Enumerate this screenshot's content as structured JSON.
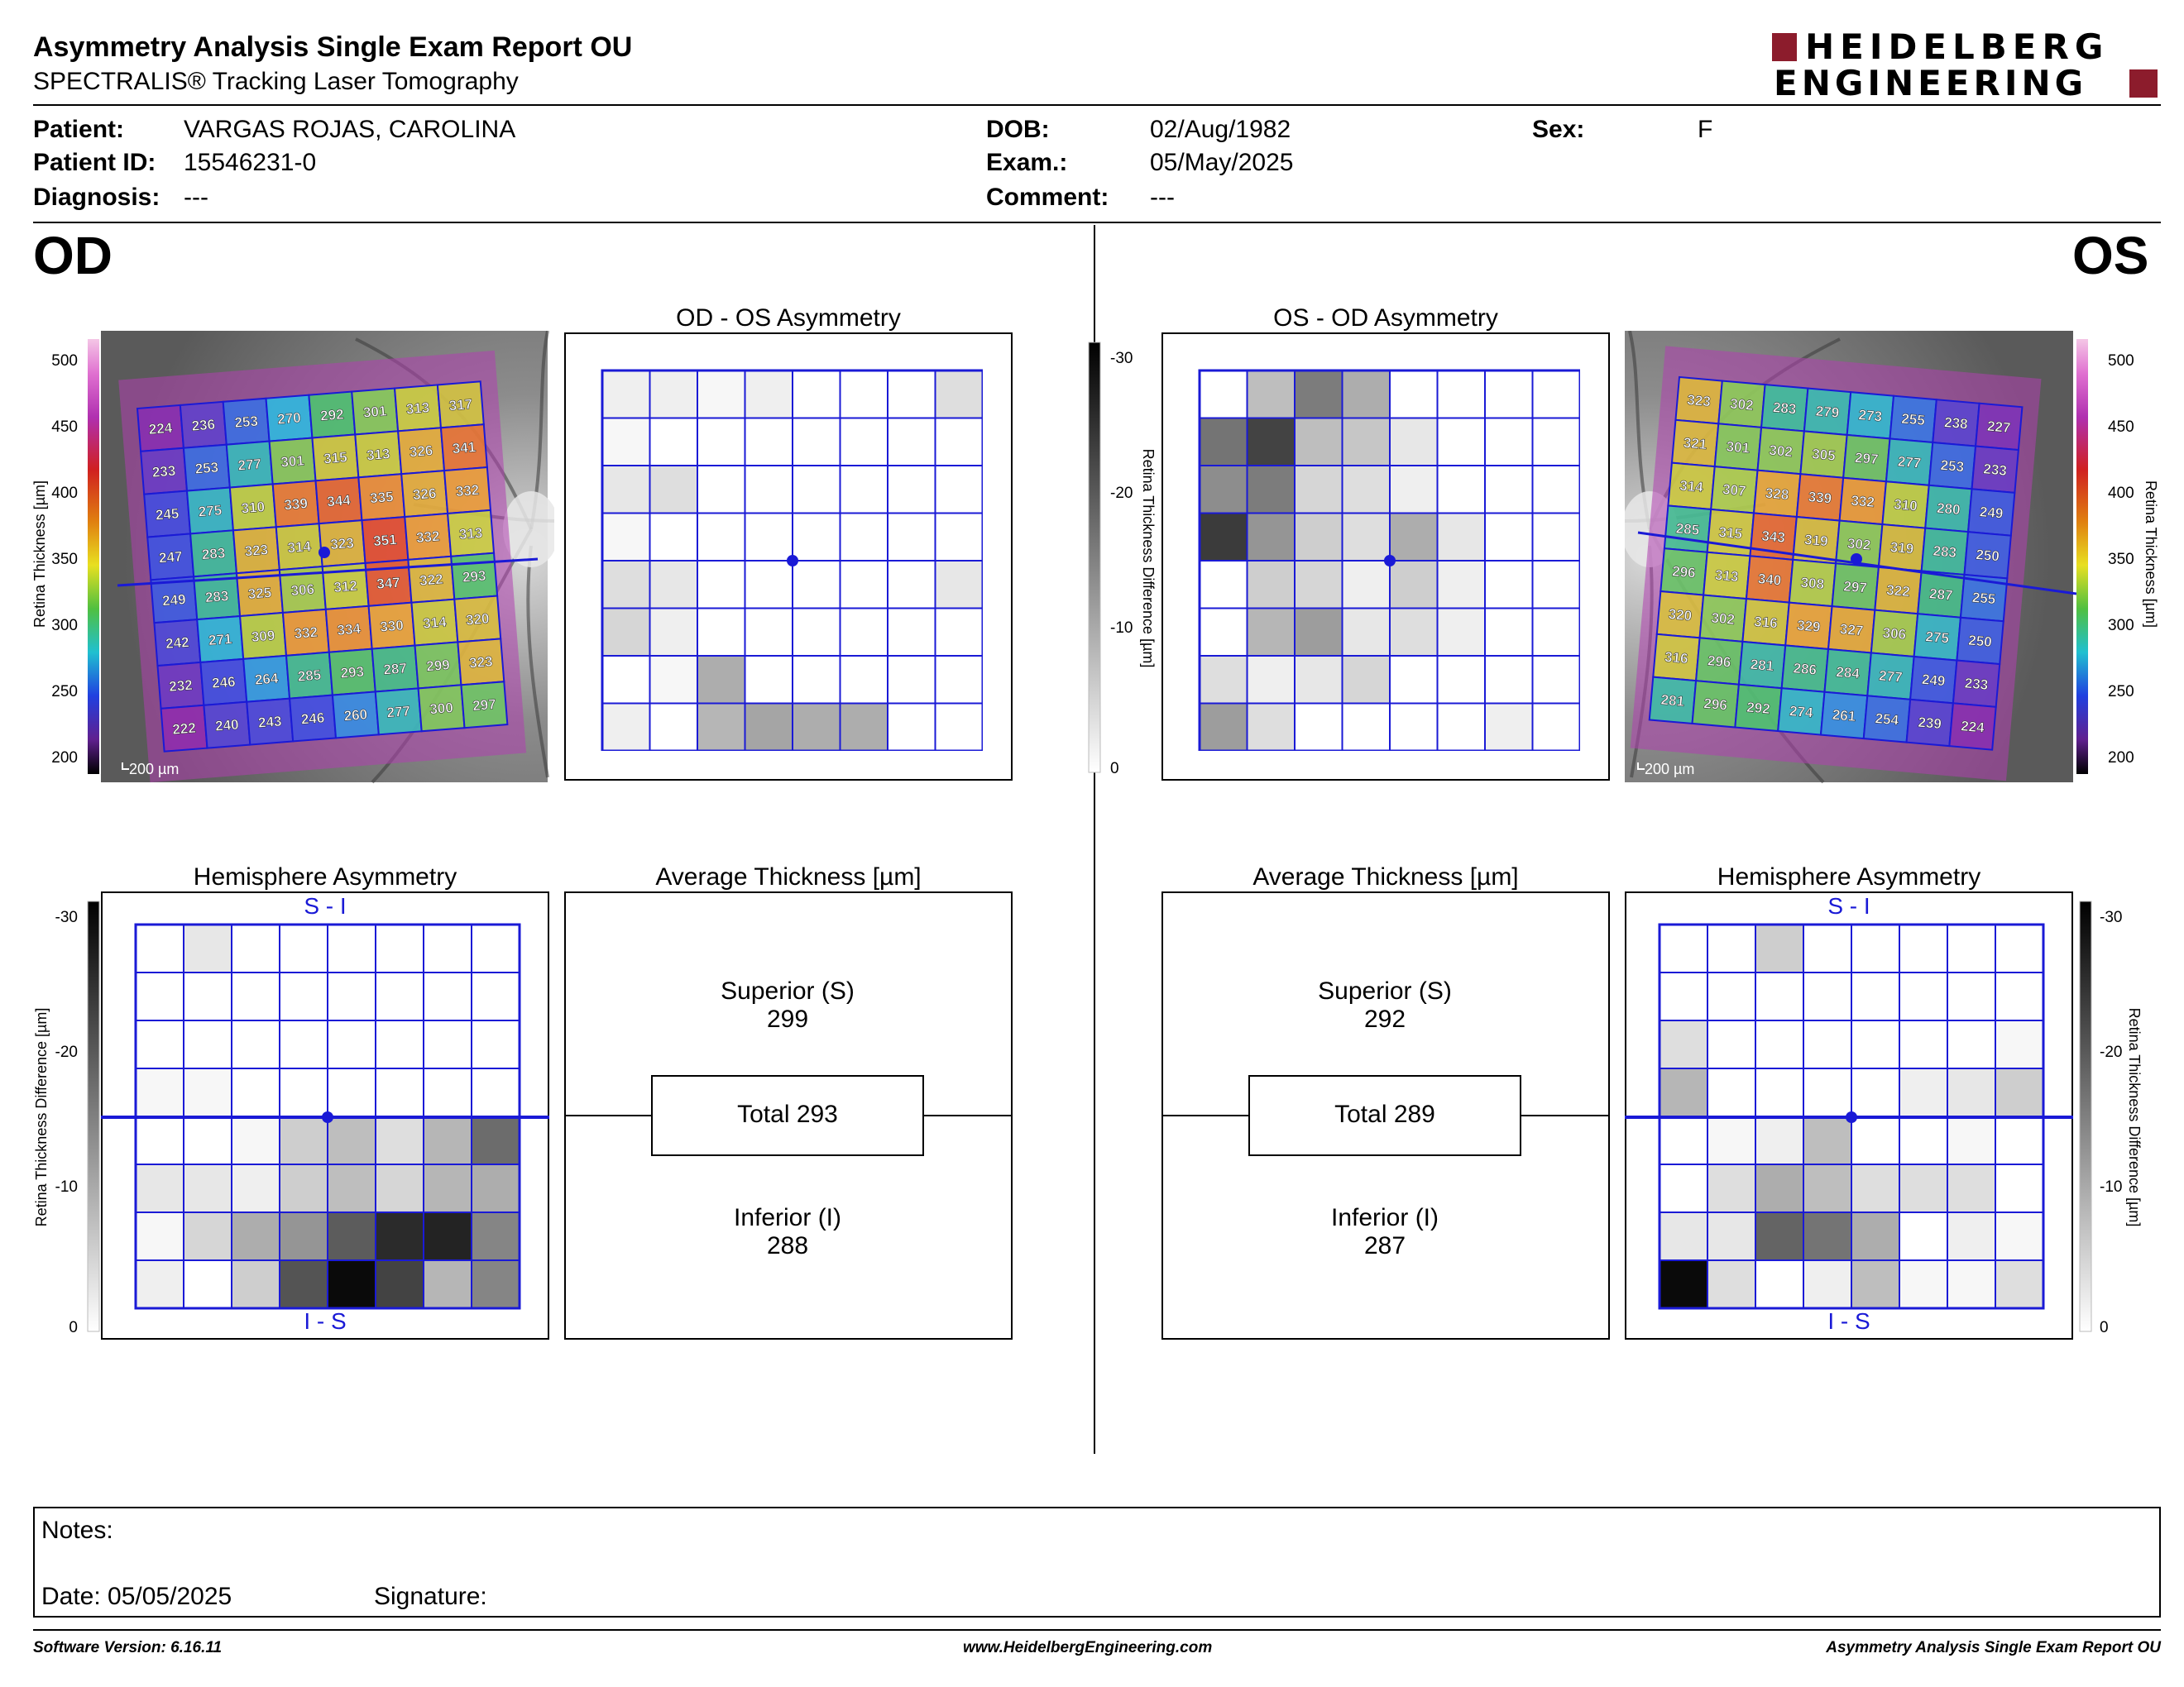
{
  "header": {
    "title": "Asymmetry Analysis Single Exam Report OU",
    "subtitle": "SPECTRALIS® Tracking Laser Tomography",
    "logo_line1": "HEIDELBERG",
    "logo_line2": "ENGINEERING"
  },
  "patient": {
    "patient_label": "Patient:",
    "patient_value": "VARGAS ROJAS, CAROLINA",
    "id_label": "Patient ID:",
    "id_value": "15546231-0",
    "diagnosis_label": "Diagnosis:",
    "diagnosis_value": "---",
    "dob_label": "DOB:",
    "dob_value": "02/Aug/1982",
    "exam_label": "Exam.:",
    "exam_value": "05/May/2025",
    "comment_label": "Comment:",
    "comment_value": "---",
    "sex_label": "Sex:",
    "sex_value": "F"
  },
  "eyes": {
    "od": "OD",
    "os": "OS"
  },
  "titles": {
    "od_os_asym": "OD - OS Asymmetry",
    "os_od_asym": "OS - OD Asymmetry",
    "hemi_left": "Hemisphere Asymmetry",
    "hemi_right": "Hemisphere Asymmetry",
    "avg_left": "Average Thickness [µm]",
    "avg_right": "Average Thickness [µm]"
  },
  "axis": {
    "thickness_label": "Retina  Thickness [µm]",
    "diff_label": "Retina Thickness Difference [µm]",
    "thickness_ticks": [
      "500",
      "450",
      "400",
      "350",
      "300",
      "250",
      "200"
    ],
    "diff_ticks": [
      "-30",
      "-20",
      "-10",
      "0"
    ],
    "scale_bar": "200 µm",
    "si": "S - I",
    "is": "I - S"
  },
  "od_thickness": [
    [
      "224",
      "236",
      "253",
      "270",
      "292",
      "301",
      "313",
      "317"
    ],
    [
      "233",
      "253",
      "277",
      "301",
      "315",
      "313",
      "326",
      "341"
    ],
    [
      "245",
      "275",
      "310",
      "339",
      "344",
      "335",
      "326",
      "332"
    ],
    [
      "247",
      "283",
      "323",
      "314",
      "323",
      "351",
      "332",
      "313"
    ],
    [
      "249",
      "283",
      "325",
      "306",
      "312",
      "347",
      "322",
      "293"
    ],
    [
      "242",
      "271",
      "309",
      "332",
      "334",
      "330",
      "314",
      "320"
    ],
    [
      "232",
      "246",
      "264",
      "285",
      "293",
      "287",
      "299",
      "323"
    ],
    [
      "222",
      "240",
      "243",
      "246",
      "260",
      "277",
      "300",
      "297"
    ]
  ],
  "os_thickness": [
    [
      "323",
      "302",
      "283",
      "279",
      "273",
      "255",
      "238",
      "227"
    ],
    [
      "321",
      "301",
      "302",
      "305",
      "297",
      "277",
      "253",
      "233"
    ],
    [
      "314",
      "307",
      "328",
      "339",
      "332",
      "310",
      "280",
      "249"
    ],
    [
      "285",
      "315",
      "343",
      "319",
      "302",
      "319",
      "283",
      "250"
    ],
    [
      "296",
      "313",
      "340",
      "308",
      "297",
      "322",
      "287",
      "255"
    ],
    [
      "320",
      "302",
      "316",
      "329",
      "327",
      "306",
      "275",
      "250"
    ],
    [
      "316",
      "296",
      "281",
      "286",
      "284",
      "277",
      "249",
      "233"
    ],
    [
      "281",
      "296",
      "292",
      "274",
      "261",
      "254",
      "239",
      "224"
    ]
  ],
  "od_os_asym_grid": [
    [
      2,
      2,
      1,
      2,
      0,
      0,
      0,
      4
    ],
    [
      1,
      0,
      0,
      0,
      0,
      0,
      0,
      0
    ],
    [
      3,
      4,
      0,
      0,
      0,
      0,
      0,
      0
    ],
    [
      1,
      0,
      0,
      0,
      0,
      0,
      0,
      0
    ],
    [
      4,
      3,
      0,
      0,
      0,
      0,
      0,
      3
    ],
    [
      5,
      2,
      0,
      0,
      0,
      0,
      0,
      0
    ],
    [
      0,
      1,
      10,
      0,
      0,
      0,
      0,
      0
    ],
    [
      2,
      0,
      9,
      11,
      10,
      10,
      0,
      0
    ]
  ],
  "os_od_asym_grid": [
    [
      0,
      8,
      16,
      10,
      0,
      0,
      0,
      0
    ],
    [
      17,
      23,
      8,
      7,
      3,
      0,
      0,
      0
    ],
    [
      14,
      16,
      5,
      4,
      2,
      0,
      0,
      0
    ],
    [
      24,
      13,
      6,
      4,
      10,
      3,
      0,
      0
    ],
    [
      0,
      6,
      5,
      2,
      6,
      2,
      0,
      0
    ],
    [
      0,
      9,
      12,
      3,
      4,
      2,
      0,
      0
    ],
    [
      4,
      2,
      3,
      5,
      0,
      0,
      0,
      0
    ],
    [
      12,
      4,
      0,
      0,
      0,
      0,
      2,
      0
    ]
  ],
  "hemi_od_grid": [
    [
      0,
      3,
      0,
      0,
      0,
      0,
      0,
      0
    ],
    [
      0,
      0,
      0,
      0,
      0,
      0,
      0,
      0
    ],
    [
      0,
      0,
      0,
      0,
      0,
      0,
      0,
      0
    ],
    [
      1,
      1,
      0,
      0,
      0,
      0,
      0,
      0
    ],
    [
      0,
      0,
      1,
      6,
      8,
      4,
      9,
      18
    ],
    [
      3,
      3,
      2,
      6,
      8,
      5,
      9,
      10
    ],
    [
      1,
      5,
      10,
      13,
      20,
      26,
      27,
      15
    ],
    [
      2,
      0,
      6,
      21,
      30,
      23,
      9,
      15
    ]
  ],
  "hemi_os_grid": [
    [
      0,
      0,
      6,
      0,
      0,
      0,
      0,
      0
    ],
    [
      0,
      0,
      0,
      0,
      0,
      0,
      0,
      0
    ],
    [
      4,
      0,
      0,
      0,
      0,
      0,
      0,
      1
    ],
    [
      9,
      0,
      0,
      0,
      0,
      2,
      3,
      6
    ],
    [
      0,
      1,
      2,
      8,
      0,
      0,
      1,
      0
    ],
    [
      0,
      4,
      10,
      8,
      4,
      4,
      4,
      0
    ],
    [
      3,
      3,
      19,
      17,
      10,
      0,
      2,
      1
    ],
    [
      30,
      4,
      0,
      2,
      8,
      1,
      1,
      4
    ]
  ],
  "avg_od": {
    "superior_label": "Superior (S)",
    "superior": "299",
    "total": "Total 293",
    "inferior_label": "Inferior (I)",
    "inferior": "288"
  },
  "avg_os": {
    "superior_label": "Superior (S)",
    "superior": "292",
    "total": "Total 289",
    "inferior_label": "Inferior (I)",
    "inferior": "287"
  },
  "notes": {
    "label": "Notes:",
    "date": "Date: 05/05/2025",
    "signature": "Signature:"
  },
  "footer": {
    "left": "Software Version: 6.16.11",
    "center": "www.HeidelbergEngineering.com",
    "right": "Asymmetry Analysis Single Exam Report OU"
  },
  "colors": {
    "grid_blue": "#1a1ad6",
    "logo_red": "#8c1c2c"
  }
}
